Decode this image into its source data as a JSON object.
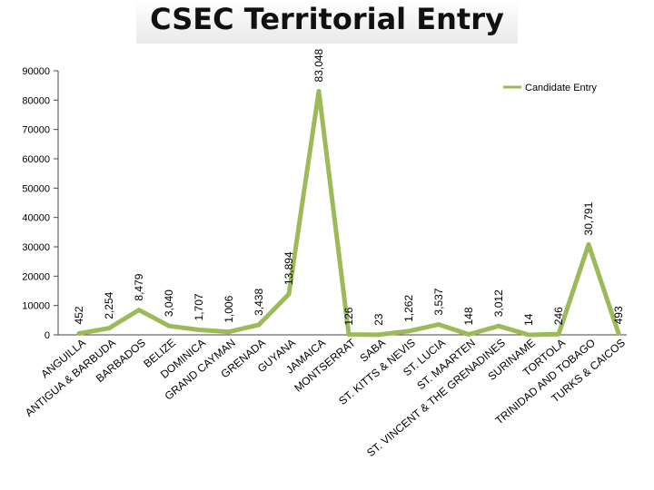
{
  "page": {
    "title": "CSEC Territorial Entry"
  },
  "chart_data": {
    "type": "line",
    "title": "CSEC Territorial Entry",
    "xlabel": "",
    "ylabel": "",
    "ylim": [
      0,
      90000
    ],
    "yticks": [
      0,
      10000,
      20000,
      30000,
      40000,
      50000,
      60000,
      70000,
      80000,
      90000
    ],
    "grid": false,
    "legend": "top-right",
    "series_color": "#9bbb59",
    "categories": [
      "ANGUILLA",
      "ANTIGUA & BARBUDA",
      "BARBADOS",
      "BELIZE",
      "DOMINICA",
      "GRAND CAYMAN",
      "GRENADA",
      "GUYANA",
      "JAMAICA",
      "MONTSERRAT",
      "SABA",
      "ST. KITTS & NEVIS",
      "ST. LUCIA",
      "ST. MAARTEN",
      "ST. VINCENT & THE GRENADINES",
      "SURINAME",
      "TORTOLA",
      "TRINIDAD AND TOBAGO",
      "TURKS & CAICOS"
    ],
    "series": [
      {
        "name": "Candidate Entry",
        "values": [
          452,
          2254,
          8479,
          3040,
          1707,
          1006,
          3438,
          13894,
          83048,
          126,
          23,
          1262,
          3537,
          148,
          3012,
          14,
          246,
          30791,
          493
        ],
        "labels": [
          "452",
          "2,254",
          "8,479",
          "3,040",
          "1,707",
          "1,006",
          "3,438",
          "13,894",
          "83,048",
          "126",
          "23",
          "1,262",
          "3,537",
          "148",
          "3,012",
          "14",
          "246",
          "30,791",
          "493"
        ]
      }
    ]
  }
}
